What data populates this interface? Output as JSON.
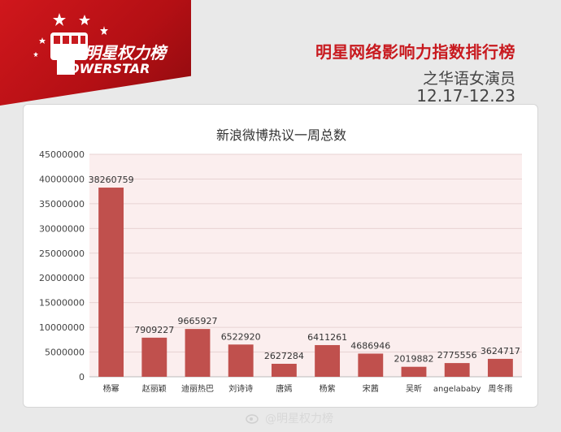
{
  "brand": {
    "name": "明星权力榜",
    "wordmark": "OWERSTAR"
  },
  "header": {
    "title": "明星网络影响力指数排行榜",
    "subtitle": "之华语女演员",
    "date_range": "12.17-12.23"
  },
  "watermark": {
    "text": "@明星权力榜"
  },
  "colors": {
    "brand_red": "#c81a1f",
    "bar": "#c0504d",
    "plot_background": "#fbeeee"
  },
  "chart_data": {
    "type": "bar",
    "title": "新浪微博热议一周总数",
    "categories": [
      "杨幂",
      "赵丽颖",
      "迪丽热巴",
      "刘诗诗",
      "唐嫣",
      "杨紫",
      "宋茜",
      "吴昕",
      "angelababy",
      "周冬雨"
    ],
    "values": [
      38260759,
      7909227,
      9665927,
      6522920,
      2627284,
      6411261,
      4686946,
      2019882,
      2775556,
      3624717
    ],
    "value_labels": [
      "38260759",
      "7909227",
      "9665927",
      "6522920",
      "2627284",
      "6411261",
      "4686946",
      "2019882",
      "2775556",
      "3624717"
    ],
    "y_ticks": [
      "0",
      "5000000",
      "10000000",
      "15000000",
      "20000000",
      "25000000",
      "30000000",
      "35000000",
      "40000000",
      "45000000"
    ],
    "ylim": [
      0,
      45000000
    ],
    "grid": true,
    "xlabel": "",
    "ylabel": ""
  }
}
